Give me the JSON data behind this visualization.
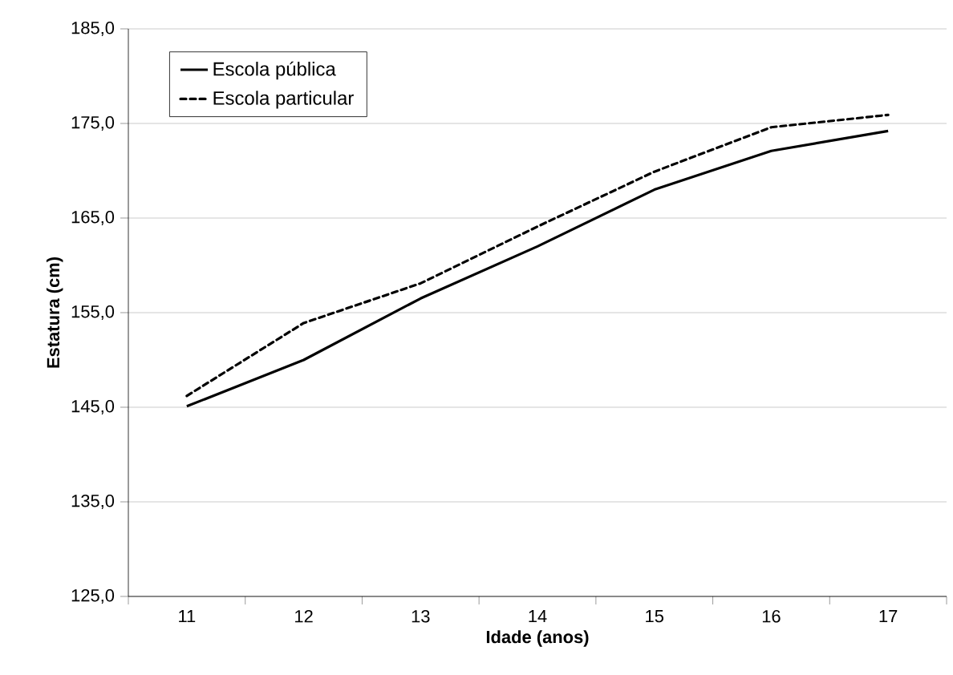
{
  "chart_data": {
    "type": "line",
    "xlabel": "Idade (anos)",
    "ylabel": "Estatura (cm)",
    "categories": [
      "11",
      "12",
      "13",
      "14",
      "15",
      "16",
      "17"
    ],
    "series": [
      {
        "name": "Escola pública",
        "color": "#000000",
        "line_style": "solid",
        "values": [
          145.1,
          150.0,
          156.5,
          162.0,
          168.0,
          172.1,
          174.2
        ]
      },
      {
        "name": "Escola particular",
        "color": "#000000",
        "line_style": "dashed",
        "values": [
          146.2,
          153.9,
          158.1,
          164.1,
          169.9,
          174.6,
          175.9
        ]
      }
    ],
    "ylim": [
      125,
      185
    ],
    "yticks": [
      {
        "value": 125,
        "label": "125,0"
      },
      {
        "value": 135,
        "label": "135,0"
      },
      {
        "value": 145,
        "label": "145,0"
      },
      {
        "value": 155,
        "label": "155,0"
      },
      {
        "value": 165,
        "label": "165,0"
      },
      {
        "value": 175,
        "label": "175,0"
      },
      {
        "value": 185,
        "label": "185,0"
      }
    ],
    "grid": "y",
    "legend": "top left"
  }
}
